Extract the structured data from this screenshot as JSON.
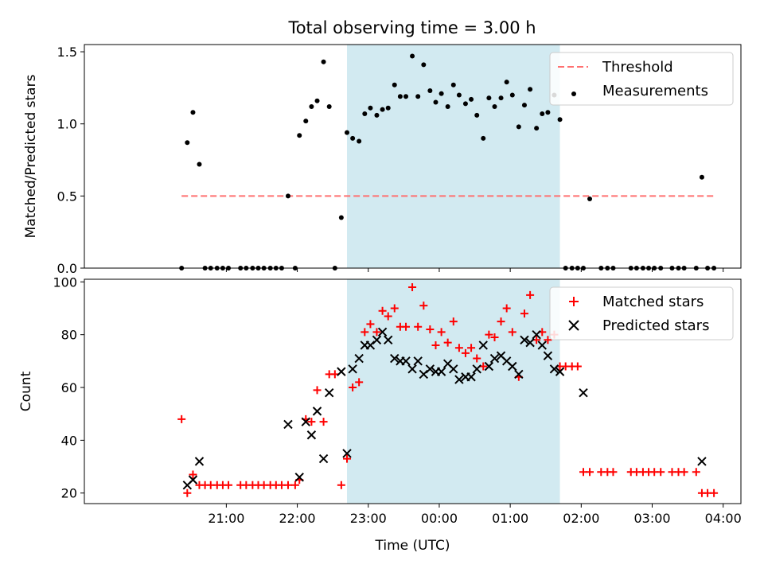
{
  "figure_title": "Total observing time = 3.00 h",
  "colors": {
    "shade": "#add8e6",
    "threshold": "#ff7070",
    "matched": "#ff0000",
    "predicted": "#000000",
    "measurement": "#000000"
  },
  "chart_data": [
    {
      "type": "scatter",
      "title": "Total observing time = 3.00 h",
      "ylabel": "Matched/Predicted stars",
      "xlabel": "",
      "x_unit": "hours since 20:00 UTC",
      "xlim": [
        -1.0,
        8.25
      ],
      "ylim": [
        0,
        1.55
      ],
      "yticks": [
        0.0,
        0.5,
        1.0,
        1.5
      ],
      "ytick_labels": [
        "0.0",
        "0.5",
        "1.0",
        "1.5"
      ],
      "shaded_span": [
        2.7,
        5.7
      ],
      "threshold": {
        "name": "Threshold",
        "y": 0.5,
        "x": [
          0.37,
          7.87
        ]
      },
      "legend": {
        "position": "top-right",
        "entries": [
          "Threshold",
          "Measurements"
        ]
      },
      "series": [
        {
          "name": "Measurements",
          "points": [
            [
              0.37,
              0.0
            ],
            [
              0.45,
              0.87
            ],
            [
              0.53,
              1.08
            ],
            [
              0.62,
              0.72
            ],
            [
              0.7,
              0.0
            ],
            [
              0.78,
              0.0
            ],
            [
              0.87,
              0.0
            ],
            [
              0.95,
              0.0
            ],
            [
              1.03,
              0.0
            ],
            [
              1.2,
              0.0
            ],
            [
              1.28,
              0.0
            ],
            [
              1.37,
              0.0
            ],
            [
              1.45,
              0.0
            ],
            [
              1.53,
              0.0
            ],
            [
              1.62,
              0.0
            ],
            [
              1.7,
              0.0
            ],
            [
              1.78,
              0.0
            ],
            [
              1.87,
              0.5
            ],
            [
              1.97,
              0.0
            ],
            [
              2.03,
              0.92
            ],
            [
              2.12,
              1.02
            ],
            [
              2.2,
              1.12
            ],
            [
              2.28,
              1.16
            ],
            [
              2.37,
              1.43
            ],
            [
              2.45,
              1.12
            ],
            [
              2.53,
              0.0
            ],
            [
              2.62,
              0.35
            ],
            [
              2.7,
              0.94
            ],
            [
              2.78,
              0.9
            ],
            [
              2.87,
              0.88
            ],
            [
              2.95,
              1.07
            ],
            [
              3.03,
              1.11
            ],
            [
              3.12,
              1.06
            ],
            [
              3.2,
              1.1
            ],
            [
              3.28,
              1.11
            ],
            [
              3.37,
              1.27
            ],
            [
              3.45,
              1.19
            ],
            [
              3.53,
              1.19
            ],
            [
              3.62,
              1.47
            ],
            [
              3.7,
              1.19
            ],
            [
              3.78,
              1.41
            ],
            [
              3.87,
              1.23
            ],
            [
              3.95,
              1.15
            ],
            [
              4.03,
              1.21
            ],
            [
              4.12,
              1.12
            ],
            [
              4.2,
              1.27
            ],
            [
              4.28,
              1.2
            ],
            [
              4.37,
              1.14
            ],
            [
              4.45,
              1.17
            ],
            [
              4.53,
              1.06
            ],
            [
              4.62,
              0.9
            ],
            [
              4.7,
              1.18
            ],
            [
              4.78,
              1.12
            ],
            [
              4.87,
              1.18
            ],
            [
              4.95,
              1.29
            ],
            [
              5.03,
              1.2
            ],
            [
              5.12,
              0.98
            ],
            [
              5.2,
              1.13
            ],
            [
              5.28,
              1.24
            ],
            [
              5.37,
              0.97
            ],
            [
              5.45,
              1.07
            ],
            [
              5.53,
              1.08
            ],
            [
              5.62,
              1.2
            ],
            [
              5.7,
              1.03
            ],
            [
              5.78,
              0.0
            ],
            [
              5.87,
              0.0
            ],
            [
              5.95,
              0.0
            ],
            [
              6.03,
              0.0
            ],
            [
              6.12,
              0.48
            ],
            [
              6.28,
              0.0
            ],
            [
              6.37,
              0.0
            ],
            [
              6.45,
              0.0
            ],
            [
              6.7,
              0.0
            ],
            [
              6.78,
              0.0
            ],
            [
              6.87,
              0.0
            ],
            [
              6.95,
              0.0
            ],
            [
              7.03,
              0.0
            ],
            [
              7.12,
              0.0
            ],
            [
              7.28,
              0.0
            ],
            [
              7.37,
              0.0
            ],
            [
              7.45,
              0.0
            ],
            [
              7.62,
              0.0
            ],
            [
              7.7,
              0.63
            ],
            [
              7.78,
              0.0
            ],
            [
              7.87,
              0.0
            ]
          ]
        }
      ]
    },
    {
      "type": "scatter",
      "title": "",
      "xlabel": "Time (UTC)",
      "ylabel": "Count",
      "x_unit": "hours since 20:00 UTC",
      "xlim": [
        -1.0,
        8.25
      ],
      "ylim": [
        16,
        101
      ],
      "xticks": [
        1,
        2,
        3,
        4,
        5,
        6,
        7,
        8
      ],
      "xtick_labels": [
        "21:00",
        "22:00",
        "23:00",
        "00:00",
        "01:00",
        "02:00",
        "03:00",
        "04:00"
      ],
      "yticks": [
        20,
        40,
        60,
        80,
        100
      ],
      "ytick_labels": [
        "20",
        "40",
        "60",
        "80",
        "100"
      ],
      "shaded_span": [
        2.7,
        5.7
      ],
      "legend": {
        "position": "top-right",
        "entries": [
          "Matched stars",
          "Predicted stars"
        ]
      },
      "series": [
        {
          "name": "Matched stars",
          "marker": "plus",
          "points": [
            [
              0.37,
              48
            ],
            [
              0.45,
              20
            ],
            [
              0.53,
              27
            ],
            [
              0.62,
              23
            ],
            [
              0.7,
              23
            ],
            [
              0.78,
              23
            ],
            [
              0.87,
              23
            ],
            [
              0.95,
              23
            ],
            [
              1.03,
              23
            ],
            [
              1.2,
              23
            ],
            [
              1.28,
              23
            ],
            [
              1.37,
              23
            ],
            [
              1.45,
              23
            ],
            [
              1.53,
              23
            ],
            [
              1.62,
              23
            ],
            [
              1.7,
              23
            ],
            [
              1.78,
              23
            ],
            [
              1.87,
              23
            ],
            [
              1.97,
              23
            ],
            [
              2.03,
              25
            ],
            [
              2.12,
              48
            ],
            [
              2.2,
              47
            ],
            [
              2.28,
              59
            ],
            [
              2.37,
              47
            ],
            [
              2.45,
              65
            ],
            [
              2.53,
              65
            ],
            [
              2.62,
              23
            ],
            [
              2.7,
              33
            ],
            [
              2.78,
              60
            ],
            [
              2.87,
              62
            ],
            [
              2.95,
              81
            ],
            [
              3.03,
              84
            ],
            [
              3.12,
              81
            ],
            [
              3.2,
              89
            ],
            [
              3.28,
              87
            ],
            [
              3.37,
              90
            ],
            [
              3.45,
              83
            ],
            [
              3.53,
              83
            ],
            [
              3.62,
              98
            ],
            [
              3.7,
              83
            ],
            [
              3.78,
              91
            ],
            [
              3.87,
              82
            ],
            [
              3.95,
              76
            ],
            [
              4.03,
              81
            ],
            [
              4.12,
              77
            ],
            [
              4.2,
              85
            ],
            [
              4.28,
              75
            ],
            [
              4.37,
              73
            ],
            [
              4.45,
              75
            ],
            [
              4.53,
              71
            ],
            [
              4.62,
              68
            ],
            [
              4.7,
              80
            ],
            [
              4.78,
              79
            ],
            [
              4.87,
              85
            ],
            [
              4.95,
              90
            ],
            [
              5.03,
              81
            ],
            [
              5.12,
              64
            ],
            [
              5.2,
              88
            ],
            [
              5.28,
              95
            ],
            [
              5.37,
              78
            ],
            [
              5.45,
              81
            ],
            [
              5.53,
              78
            ],
            [
              5.62,
              80
            ],
            [
              5.7,
              68
            ],
            [
              5.78,
              68
            ],
            [
              5.87,
              68
            ],
            [
              5.95,
              68
            ],
            [
              6.03,
              28
            ],
            [
              6.12,
              28
            ],
            [
              6.28,
              28
            ],
            [
              6.37,
              28
            ],
            [
              6.45,
              28
            ],
            [
              6.7,
              28
            ],
            [
              6.78,
              28
            ],
            [
              6.87,
              28
            ],
            [
              6.95,
              28
            ],
            [
              7.03,
              28
            ],
            [
              7.12,
              28
            ],
            [
              7.28,
              28
            ],
            [
              7.37,
              28
            ],
            [
              7.45,
              28
            ],
            [
              7.62,
              28
            ],
            [
              7.7,
              20
            ],
            [
              7.78,
              20
            ],
            [
              7.87,
              20
            ]
          ]
        },
        {
          "name": "Predicted stars",
          "marker": "x",
          "points": [
            [
              0.45,
              23
            ],
            [
              0.53,
              25
            ],
            [
              0.62,
              32
            ],
            [
              1.87,
              46
            ],
            [
              2.03,
              26
            ],
            [
              2.12,
              47
            ],
            [
              2.2,
              42
            ],
            [
              2.28,
              51
            ],
            [
              2.37,
              33
            ],
            [
              2.45,
              58
            ],
            [
              2.62,
              66
            ],
            [
              2.7,
              35
            ],
            [
              2.78,
              67
            ],
            [
              2.87,
              71
            ],
            [
              2.95,
              76
            ],
            [
              3.03,
              76
            ],
            [
              3.12,
              78
            ],
            [
              3.2,
              81
            ],
            [
              3.28,
              78
            ],
            [
              3.37,
              71
            ],
            [
              3.45,
              70
            ],
            [
              3.53,
              70
            ],
            [
              3.62,
              67
            ],
            [
              3.7,
              70
            ],
            [
              3.78,
              65
            ],
            [
              3.87,
              67
            ],
            [
              3.95,
              66
            ],
            [
              4.03,
              66
            ],
            [
              4.12,
              69
            ],
            [
              4.2,
              67
            ],
            [
              4.28,
              63
            ],
            [
              4.37,
              64
            ],
            [
              4.45,
              64
            ],
            [
              4.53,
              67
            ],
            [
              4.62,
              76
            ],
            [
              4.7,
              68
            ],
            [
              4.78,
              71
            ],
            [
              4.87,
              72
            ],
            [
              4.95,
              70
            ],
            [
              5.03,
              68
            ],
            [
              5.12,
              65
            ],
            [
              5.2,
              78
            ],
            [
              5.28,
              77
            ],
            [
              5.37,
              80
            ],
            [
              5.45,
              76
            ],
            [
              5.53,
              72
            ],
            [
              5.62,
              67
            ],
            [
              5.7,
              66
            ],
            [
              6.03,
              58
            ],
            [
              7.7,
              32
            ]
          ]
        }
      ]
    }
  ]
}
